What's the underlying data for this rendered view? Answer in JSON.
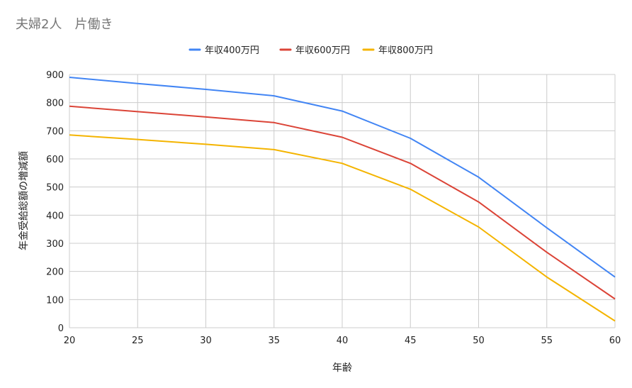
{
  "chart_data": {
    "type": "line",
    "title": "夫婦2人　片働き",
    "xlabel": "年齢",
    "ylabel": "年金受給総額の増減額",
    "x": [
      20,
      25,
      30,
      35,
      40,
      45,
      50,
      55,
      60
    ],
    "xlim": [
      20,
      60
    ],
    "ylim": [
      0,
      900
    ],
    "yticks": [
      0,
      100,
      200,
      300,
      400,
      500,
      600,
      700,
      800,
      900
    ],
    "grid": true,
    "legend_position": "top",
    "series": [
      {
        "name": "年収400万円",
        "color": "#4285f4",
        "values": [
          890,
          868,
          847,
          824,
          770,
          673,
          535,
          355,
          180
        ]
      },
      {
        "name": "年収600万円",
        "color": "#db4437",
        "values": [
          787,
          768,
          749,
          729,
          677,
          584,
          447,
          268,
          102
        ]
      },
      {
        "name": "年収800万円",
        "color": "#f4b400",
        "values": [
          685,
          669,
          652,
          633,
          584,
          492,
          358,
          180,
          24
        ]
      }
    ]
  }
}
